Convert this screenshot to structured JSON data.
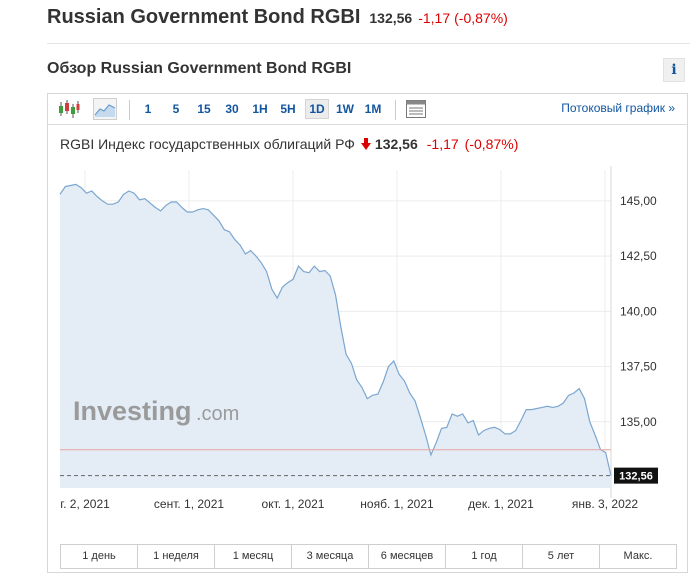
{
  "header": {
    "title": "Russian Government Bond RGBI",
    "price": "132,56",
    "change": "-1,17",
    "change_pct": "(-0,87%)"
  },
  "overview": {
    "title": "Обзор Russian Government Bond RGBI",
    "info_label": "i"
  },
  "toolbar": {
    "candles_icon": "candlestick-icon",
    "area_icon": "area-chart-icon",
    "intervals": [
      "1",
      "5",
      "15",
      "30",
      "1H",
      "5H",
      "1D",
      "1W",
      "1M"
    ],
    "active_interval": "1D",
    "table_icon": "table-icon",
    "stream_link": "Потоковый график »"
  },
  "chart_header": {
    "name": "RGBI Индекс государственных облигаций РФ",
    "price": "132,56",
    "change": "-1,17",
    "change_pct": "(-0,87%)"
  },
  "watermark": {
    "brand": "Investing",
    "suffix": ".com"
  },
  "chart_data": {
    "type": "area",
    "title": "",
    "xlabel": "",
    "ylabel": "",
    "x_ticks": [
      "г. 2, 2021",
      "сент. 1, 2021",
      "окт. 1, 2021",
      "нояб. 1, 2021",
      "дек. 1, 2021",
      "янв. 3, 2022"
    ],
    "y_ticks": [
      "145,00",
      "142,50",
      "140,00",
      "137,50",
      "135,00"
    ],
    "ylim": [
      132.0,
      146.4
    ],
    "grid": true,
    "last_value": 132.56,
    "last_label": "132,56",
    "previous_close_line": 133.73,
    "series": [
      {
        "values": [
          145.3,
          145.65,
          145.7,
          145.75,
          145.6,
          145.35,
          145.45,
          145.2,
          145.0,
          144.85,
          144.85,
          144.95,
          145.3,
          145.45,
          145.35,
          145.05,
          145.1,
          144.9,
          144.7,
          144.55,
          144.8,
          144.95,
          144.95,
          144.7,
          144.5,
          144.5,
          144.6,
          144.65,
          144.6,
          144.35,
          144.1,
          143.7,
          143.6,
          143.25,
          143.0,
          142.6,
          142.75,
          142.5,
          142.2,
          141.8,
          141.0,
          140.6,
          141.1,
          141.3,
          141.45,
          142.05,
          141.8,
          141.75,
          142.05,
          141.8,
          141.85,
          141.6,
          140.75,
          139.3,
          138.05,
          137.65,
          136.9,
          136.55,
          136.05,
          136.2,
          136.25,
          136.8,
          137.5,
          137.75,
          137.15,
          136.85,
          136.3,
          135.95,
          135.2,
          134.4,
          133.5,
          134.05,
          134.7,
          134.75,
          135.35,
          135.25,
          135.35,
          134.95,
          135.05,
          134.4,
          134.6,
          134.7,
          134.75,
          134.65,
          134.45,
          134.45,
          134.6,
          135.05,
          135.55,
          135.55,
          135.6,
          135.65,
          135.7,
          135.65,
          135.7,
          135.85,
          136.2,
          136.3,
          136.5,
          136.05,
          135.0,
          134.4,
          133.75,
          133.6,
          132.56
        ]
      }
    ]
  },
  "ranges": [
    "1 день",
    "1 неделя",
    "1 месяц",
    "3 месяца",
    "6 месяцев",
    "1 год",
    "5 лет",
    "Макс."
  ]
}
